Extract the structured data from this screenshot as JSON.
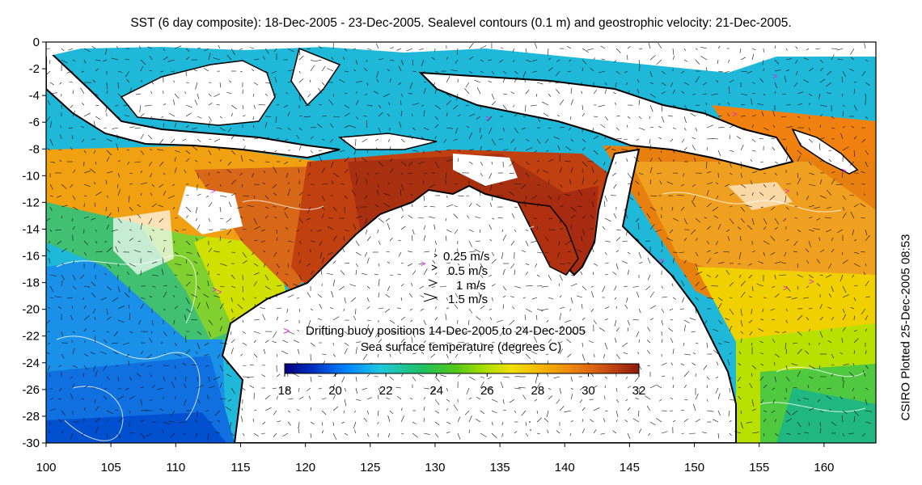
{
  "title": "SST (6 day composite): 18-Dec-2005 - 23-Dec-2005. Sealevel contours (0.1 m) and geostrophic velocity: 21-Dec-2005.",
  "side_label": "CSIRO Plotted 25-Dec-2005 08:53",
  "axes": {
    "x_ticks": [
      "100",
      "105",
      "110",
      "115",
      "120",
      "125",
      "130",
      "135",
      "140",
      "145",
      "150",
      "155",
      "160"
    ],
    "y_ticks": [
      "0",
      "-2",
      "-4",
      "-6",
      "-8",
      "-10",
      "-12",
      "-14",
      "-16",
      "-18",
      "-20",
      "-22",
      "-24",
      "-26",
      "-28",
      "-30"
    ]
  },
  "velocity_legend": [
    "0.25 m/s",
    "0.5 m/s",
    "1 m/s",
    "1.5 m/s"
  ],
  "buoy_marker": ">",
  "buoy_legend": "Drifting buoy positions 14-Dec-2005 to 24-Dec-2005",
  "colorbar": {
    "title": "Sea surface temperature (degrees C)",
    "ticks": [
      "18",
      "20",
      "22",
      "24",
      "26",
      "28",
      "30",
      "32"
    ],
    "range": [
      18,
      32
    ]
  },
  "colors": {
    "land": "#ffffff",
    "coast": "#000000",
    "contour": "#ffffff",
    "buoy": "#e020e0",
    "colormap": [
      "#00007f",
      "#0030c0",
      "#0080ff",
      "#20c8e0",
      "#20c060",
      "#50c818",
      "#b0e000",
      "#f0e000",
      "#f5b800",
      "#f08c10",
      "#d86010",
      "#b03510",
      "#8c1a0a"
    ]
  }
}
